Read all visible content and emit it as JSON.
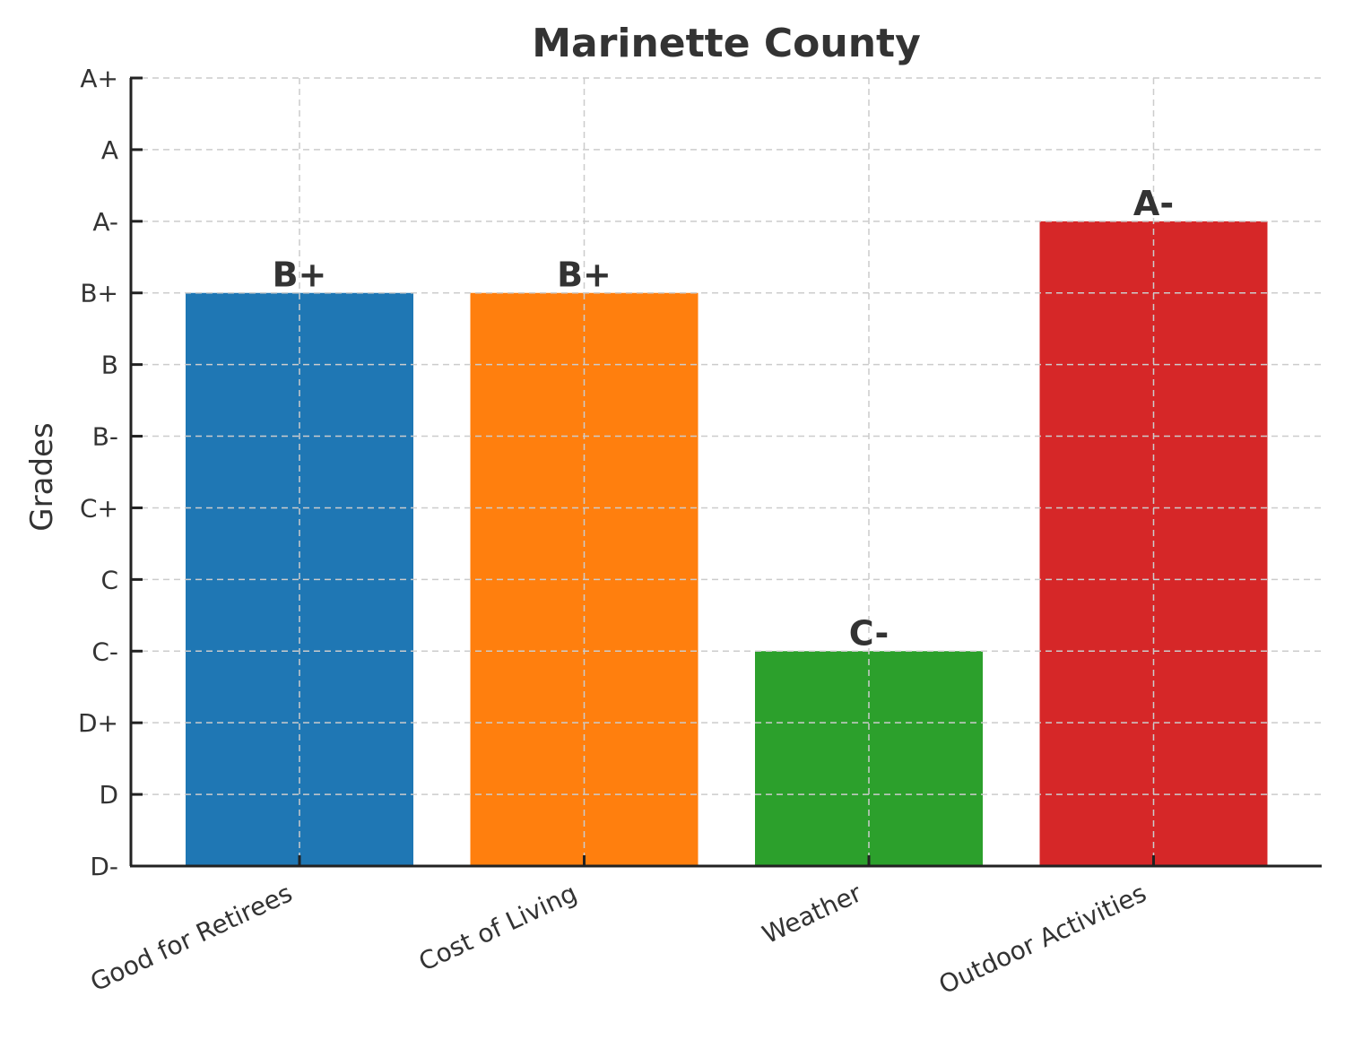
{
  "chart_data": {
    "type": "bar",
    "title": "Marinette County",
    "xlabel": "",
    "ylabel": "Grades",
    "grade_scale": [
      "D-",
      "D",
      "D+",
      "C-",
      "C",
      "C+",
      "B-",
      "B",
      "B+",
      "A-",
      "A",
      "A+"
    ],
    "categories": [
      "Good for Retirees",
      "Cost of Living",
      "Weather",
      "Outdoor Activities"
    ],
    "values": [
      "B+",
      "B+",
      "C-",
      "A-"
    ],
    "colors": [
      "#1f77b4",
      "#ff7f0e",
      "#2ca02c",
      "#d62728"
    ],
    "ylim": [
      "D-",
      "A+"
    ],
    "grid": true
  }
}
